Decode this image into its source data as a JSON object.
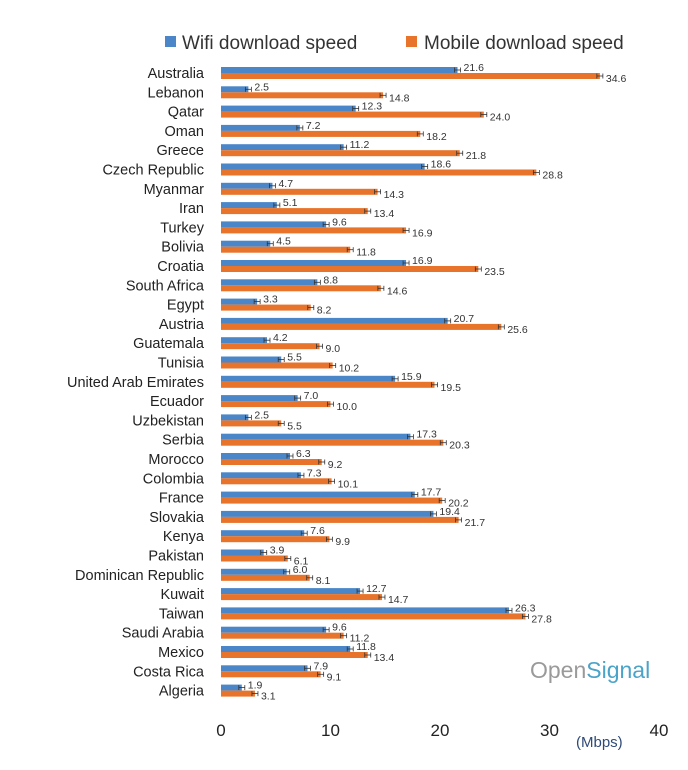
{
  "chart_data": {
    "type": "bar",
    "orientation": "horizontal",
    "categories": [
      "Australia",
      "Lebanon",
      "Qatar",
      "Oman",
      "Greece",
      "Czech Republic",
      "Myanmar",
      "Iran",
      "Turkey",
      "Bolivia",
      "Croatia",
      "South Africa",
      "Egypt",
      "Austria",
      "Guatemala",
      "Tunisia",
      "United Arab Emirates",
      "Ecuador",
      "Uzbekistan",
      "Serbia",
      "Morocco",
      "Colombia",
      "France",
      "Slovakia",
      "Kenya",
      "Pakistan",
      "Dominican Republic",
      "Kuwait",
      "Taiwan",
      "Saudi Arabia",
      "Mexico",
      "Costa Rica",
      "Algeria"
    ],
    "series": [
      {
        "name": "Wifi download speed",
        "color": "#4a86c8",
        "values": [
          21.6,
          2.5,
          12.3,
          7.2,
          11.2,
          18.6,
          4.7,
          5.1,
          9.6,
          4.5,
          16.9,
          8.8,
          3.3,
          20.7,
          4.2,
          5.5,
          15.9,
          7.0,
          2.5,
          17.3,
          6.3,
          7.3,
          17.7,
          19.4,
          7.6,
          3.9,
          6.0,
          12.7,
          26.3,
          9.6,
          11.8,
          7.9,
          1.9
        ],
        "labels": [
          "21.6",
          "2.5",
          "12.3",
          "7.2",
          "11.2",
          "18.6",
          "4.7",
          "5.1",
          "9.6",
          "4.5",
          "16.9",
          "8.8",
          "3.3",
          "20.7",
          "4.2",
          "5.5",
          "15.9",
          "7.0",
          "2.5",
          "17.3",
          "6.3",
          "7.3",
          "17.7",
          "19.4",
          "7.6",
          "3.9",
          "6.0",
          "12.7",
          "26.3",
          "9.6",
          "11.8",
          "7.9",
          "1.9"
        ]
      },
      {
        "name": "Mobile download speed",
        "color": "#e8732a",
        "values": [
          34.6,
          14.8,
          24.0,
          18.2,
          21.8,
          28.8,
          14.3,
          13.4,
          16.9,
          11.8,
          23.5,
          14.6,
          8.2,
          25.6,
          9.0,
          10.2,
          19.5,
          10.0,
          5.5,
          20.3,
          9.2,
          10.1,
          20.2,
          21.7,
          9.9,
          6.1,
          8.1,
          14.7,
          27.8,
          11.2,
          13.4,
          9.1,
          3.1
        ],
        "labels": [
          "34.6",
          "14.8",
          "24.0",
          "18.2",
          "21.8",
          "28.8",
          "14.3",
          "13.4",
          "16.9",
          "11.8",
          "23.5",
          "14.6",
          "8.2",
          "25.6",
          "9.0",
          "10.2",
          "19.5",
          "10.0",
          "5.5",
          "20.3",
          "9.2",
          "10.1",
          "20.2",
          "21.7",
          "9.9",
          "6.1",
          "8.1",
          "14.7",
          "27.8",
          "11.2",
          "13.4",
          "9.1",
          "3.1"
        ]
      }
    ],
    "x_ticks": [
      "0",
      "10",
      "20",
      "30",
      "40"
    ],
    "xlim": [
      0,
      40
    ],
    "xlabel": "(Mbps)",
    "legend_position": "top",
    "grid": false
  },
  "brand": {
    "part1": "Open",
    "part2": "Signal",
    "color2": "#4aa3c9"
  }
}
